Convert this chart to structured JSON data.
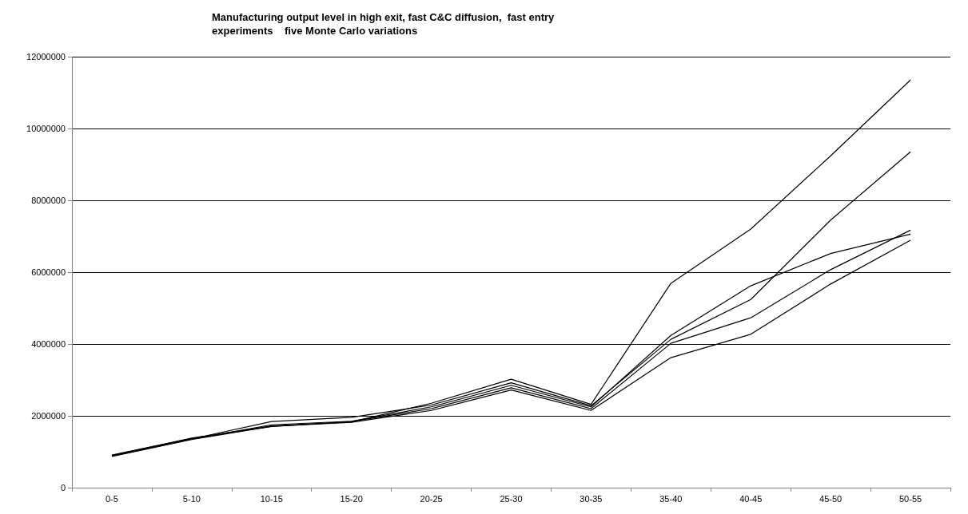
{
  "chart_data": {
    "type": "line",
    "title": "Manufacturing output level in high exit, fast C&C diffusion,  fast entry\nexperiments    five Monte Carlo variations",
    "categories": [
      "0-5",
      "5-10",
      "10-15",
      "15-20",
      "20-25",
      "25-30",
      "30-35",
      "35-40",
      "40-45",
      "45-50",
      "50-55"
    ],
    "series": [
      {
        "color": "#000000",
        "values": [
          900000,
          1380000,
          1720000,
          1830000,
          2350000,
          3020000,
          2320000,
          5690000,
          7200000,
          9240000,
          11350000
        ]
      },
      {
        "color": "#000000",
        "values": [
          890000,
          1360000,
          1840000,
          1960000,
          2300000,
          2920000,
          2280000,
          4130000,
          5240000,
          7450000,
          9350000
        ]
      },
      {
        "color": "#000000",
        "values": [
          880000,
          1350000,
          1750000,
          1850000,
          2250000,
          2850000,
          2250000,
          4240000,
          5620000,
          6520000,
          7060000
        ]
      },
      {
        "color": "#000000",
        "values": [
          910000,
          1370000,
          1700000,
          1840000,
          2200000,
          2780000,
          2200000,
          4020000,
          4730000,
          6070000,
          7170000
        ]
      },
      {
        "color": "#000000",
        "values": [
          870000,
          1340000,
          1710000,
          1820000,
          2150000,
          2720000,
          2150000,
          3620000,
          4270000,
          5670000,
          6890000
        ]
      }
    ],
    "ylim": [
      0,
      12000000
    ],
    "yticks": [
      0,
      2000000,
      4000000,
      6000000,
      8000000,
      10000000,
      12000000
    ],
    "grid": "y",
    "marker": "none",
    "line_style": "solid"
  }
}
